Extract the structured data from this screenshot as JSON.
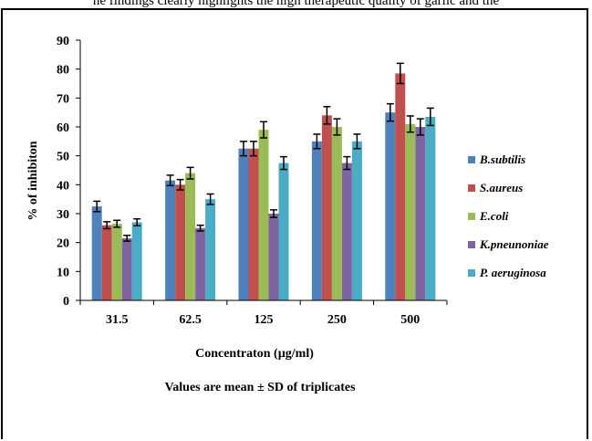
{
  "page": {
    "top_fragment": "he findings clearly highlights the high therapeutic quality of garlic and the"
  },
  "chart_data": {
    "type": "bar",
    "title": "",
    "xlabel": "Concentraton (µg/ml)",
    "ylabel": "% of inhibiton",
    "caption": "Values are mean ± SD of triplicates",
    "ylim": [
      0,
      90
    ],
    "yticks": [
      0,
      10,
      20,
      30,
      40,
      50,
      60,
      70,
      80,
      90
    ],
    "grid": false,
    "legend_position": "right",
    "categories": [
      "31.5",
      "62.5",
      "125",
      "250",
      "500"
    ],
    "series": [
      {
        "name": "B.subtilis",
        "color": "#4F81BD",
        "values": [
          32.5,
          41.5,
          52.5,
          55,
          65
        ],
        "errors": [
          1.8,
          1.8,
          2.5,
          2.5,
          3
        ]
      },
      {
        "name": "S.aureus",
        "color": "#C0504D",
        "values": [
          26,
          40,
          52.5,
          64,
          78.5
        ],
        "errors": [
          1.2,
          1.8,
          2.5,
          3,
          3.5
        ]
      },
      {
        "name": "E.coli",
        "color": "#9BBB59",
        "values": [
          26.5,
          44,
          59,
          60,
          61
        ],
        "errors": [
          1.2,
          2,
          2.8,
          2.8,
          2.8
        ]
      },
      {
        "name": "K.pneunoniae",
        "color": "#8064A2",
        "values": [
          21.5,
          25,
          30,
          47.5,
          60
        ],
        "errors": [
          1,
          1,
          1.3,
          2.2,
          2.8
        ]
      },
      {
        "name": "P. aeruginosa",
        "color": "#4BACC6",
        "values": [
          27,
          35,
          47.5,
          55,
          63.5
        ],
        "errors": [
          1.2,
          1.8,
          2.2,
          2.5,
          3
        ]
      }
    ]
  }
}
